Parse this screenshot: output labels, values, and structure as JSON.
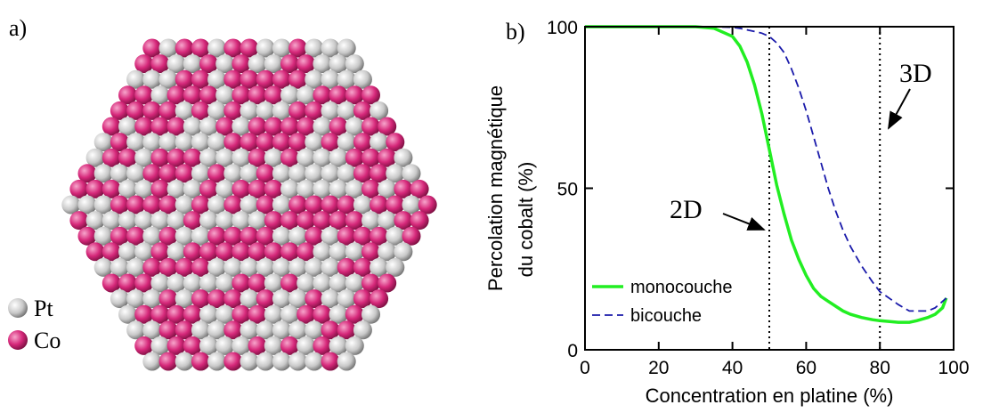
{
  "panel_a": {
    "label": "a)",
    "legend": [
      {
        "name": "Pt",
        "color": "#c8c8c8"
      },
      {
        "name": "Co",
        "color": "#d6287a"
      }
    ]
  },
  "chart_data": {
    "type": "line",
    "panel_label": "b)",
    "x_label": "Concentration en platine (%)",
    "y_label": [
      "Percolation magnétique",
      "du cobalt (%)"
    ],
    "x": [
      0,
      30,
      35,
      40,
      42,
      44,
      46,
      48,
      50,
      52,
      54,
      56,
      58,
      60,
      62,
      64,
      66,
      68,
      70,
      72,
      75,
      78,
      80,
      85,
      88,
      90,
      93,
      95,
      97,
      98
    ],
    "series": [
      {
        "name": "monocouche",
        "color": "#22ee22",
        "dash": false,
        "values": [
          100,
          100,
          99.5,
          97,
          94,
          89,
          82,
          73,
          62,
          51,
          42,
          34,
          28,
          23,
          19,
          16.5,
          15,
          13.5,
          12,
          11,
          10,
          9.3,
          9,
          8.5,
          8.5,
          9,
          10,
          11,
          13,
          16
        ]
      },
      {
        "name": "bicouche",
        "color": "#1a1aaa",
        "dash": true,
        "values": [
          100,
          100,
          100,
          99.8,
          99.5,
          99,
          98.5,
          98,
          97,
          95,
          92,
          87,
          81,
          74,
          66,
          58,
          50,
          43,
          37,
          32,
          26,
          21,
          18,
          14,
          12,
          12,
          12,
          13,
          15,
          16
        ]
      }
    ],
    "xlim": [
      0,
      100
    ],
    "ylim": [
      0,
      100
    ],
    "xticks": [
      0,
      20,
      40,
      60,
      80,
      100
    ],
    "yticks": [
      0,
      50,
      100
    ],
    "vlines": [
      50,
      80
    ],
    "annotations": [
      "2D",
      "3D"
    ]
  }
}
